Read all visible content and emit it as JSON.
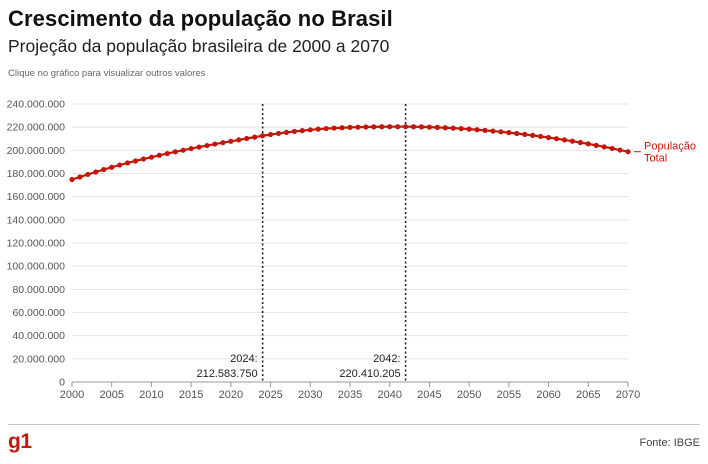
{
  "header": {
    "title": "Crescimento da população no Brasil",
    "subtitle": "Projeção da população brasileira de 2000 a 2070",
    "hint": "Clique no gráfico para visualizar outros valores"
  },
  "footer": {
    "logo": "g1",
    "source": "Fonte: IBGE"
  },
  "colors": {
    "series": "#c4170c",
    "marker": "#c4170c",
    "grid": "#e4e4e4",
    "axis_text": "#555555",
    "annotation_line": "#222222"
  },
  "chart_data": {
    "type": "line",
    "title": "",
    "xlabel": "",
    "ylabel": "",
    "xlim": [
      2000,
      2070
    ],
    "ylim": [
      0,
      240000000
    ],
    "grid": true,
    "x_ticks": [
      "2000",
      "2005",
      "2010",
      "2015",
      "2020",
      "2025",
      "2030",
      "2035",
      "2040",
      "2045",
      "2050",
      "2055",
      "2060",
      "2065",
      "2070"
    ],
    "y_ticks": [
      "0",
      "20.000.000",
      "40.000.000",
      "60.000.000",
      "80.000.000",
      "100.000.000",
      "120.000.000",
      "140.000.000",
      "160.000.000",
      "180.000.000",
      "200.000.000",
      "220.000.000",
      "240.000.000"
    ],
    "series": [
      {
        "name": "População Total",
        "label_lines": [
          "População",
          "Total"
        ],
        "x": [
          2000,
          2001,
          2002,
          2003,
          2004,
          2005,
          2006,
          2007,
          2008,
          2009,
          2010,
          2011,
          2012,
          2013,
          2014,
          2015,
          2016,
          2017,
          2018,
          2019,
          2020,
          2021,
          2022,
          2023,
          2024,
          2025,
          2026,
          2027,
          2028,
          2029,
          2030,
          2031,
          2032,
          2033,
          2034,
          2035,
          2036,
          2037,
          2038,
          2039,
          2040,
          2041,
          2042,
          2043,
          2044,
          2045,
          2046,
          2047,
          2048,
          2049,
          2050,
          2051,
          2052,
          2053,
          2054,
          2055,
          2056,
          2057,
          2058,
          2059,
          2060,
          2061,
          2062,
          2063,
          2064,
          2065,
          2066,
          2067,
          2068,
          2069,
          2070
        ],
        "values": [
          174800000,
          177000000,
          179200000,
          181300000,
          183400000,
          185400000,
          187300000,
          189100000,
          190800000,
          192500000,
          194100000,
          195700000,
          197200000,
          198700000,
          200100000,
          201500000,
          202800000,
          204100000,
          205400000,
          206600000,
          207800000,
          209000000,
          210200000,
          211400000,
          212583750,
          213600000,
          214600000,
          215500000,
          216300000,
          217000000,
          217700000,
          218300000,
          218800000,
          219200000,
          219500000,
          219800000,
          220000000,
          220150000,
          220270000,
          220350000,
          220400000,
          220420000,
          220410205,
          220350000,
          220220000,
          220050000,
          219800000,
          219500000,
          219150000,
          218750000,
          218300000,
          217800000,
          217250000,
          216650000,
          216000000,
          215300000,
          214550000,
          213750000,
          212900000,
          212000000,
          211050000,
          210050000,
          209000000,
          207900000,
          206750000,
          205550000,
          204300000,
          203000000,
          201650000,
          200250000,
          198800000
        ]
      }
    ],
    "annotations": [
      {
        "x": 2024,
        "year_label": "2024:",
        "value_label": "212.583.750"
      },
      {
        "x": 2042,
        "year_label": "2042:",
        "value_label": "220.410.205"
      }
    ]
  }
}
